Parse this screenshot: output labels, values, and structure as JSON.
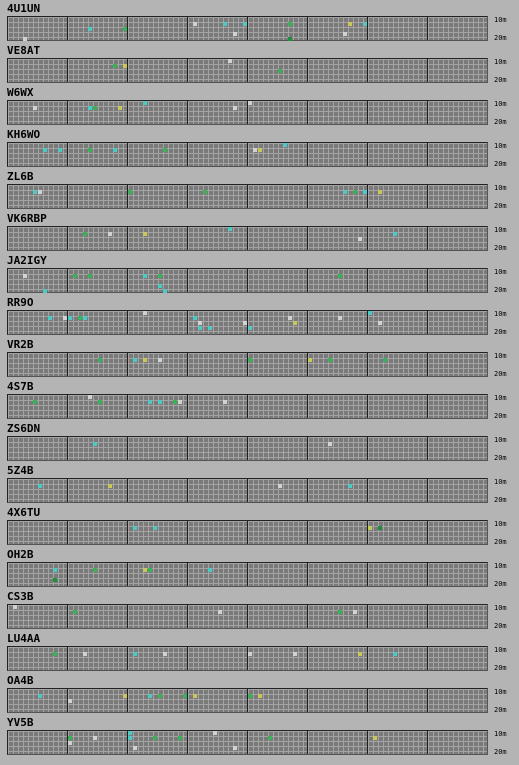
{
  "band_labels": {
    "top": "10m",
    "bottom": "20m"
  },
  "legend_colors": {
    "faint": "#d2d2d2",
    "weak": "#4ecac4",
    "medium": "#3bb25a",
    "strong": "#c8c85a",
    "dark": "#1f8f3c"
  },
  "beacons": [
    {
      "callsign": "4U1UN",
      "cells": [
        [
          16,
          2,
          "weak"
        ],
        [
          23,
          2,
          "medium"
        ],
        [
          37,
          1,
          "faint"
        ],
        [
          43,
          1,
          "weak"
        ],
        [
          47,
          1,
          "weak"
        ],
        [
          56,
          1,
          "medium"
        ],
        [
          68,
          1,
          "strong"
        ],
        [
          71,
          1,
          "weak"
        ],
        [
          3,
          4,
          "faint"
        ],
        [
          45,
          3,
          "faint"
        ],
        [
          56,
          4,
          "dark"
        ],
        [
          67,
          3,
          "faint"
        ]
      ]
    },
    {
      "callsign": "VE8AT",
      "cells": [
        [
          21,
          1,
          "medium"
        ],
        [
          23,
          1,
          "strong"
        ],
        [
          44,
          0,
          "faint"
        ],
        [
          54,
          2,
          "medium"
        ]
      ]
    },
    {
      "callsign": "W6WX",
      "cells": [
        [
          5,
          1,
          "faint"
        ],
        [
          16,
          1,
          "weak"
        ],
        [
          17,
          1,
          "medium"
        ],
        [
          22,
          1,
          "strong"
        ],
        [
          27,
          0,
          "weak"
        ],
        [
          45,
          1,
          "faint"
        ],
        [
          48,
          0,
          "faint"
        ]
      ]
    },
    {
      "callsign": "KH6WO",
      "cells": [
        [
          7,
          1,
          "weak"
        ],
        [
          10,
          1,
          "weak"
        ],
        [
          16,
          1,
          "medium"
        ],
        [
          21,
          1,
          "weak"
        ],
        [
          31,
          1,
          "medium"
        ],
        [
          49,
          1,
          "faint"
        ],
        [
          55,
          0,
          "weak"
        ],
        [
          50,
          1,
          "strong"
        ]
      ]
    },
    {
      "callsign": "ZL6B",
      "cells": [
        [
          5,
          1,
          "weak"
        ],
        [
          6,
          1,
          "faint"
        ],
        [
          24,
          1,
          "medium"
        ],
        [
          39,
          1,
          "medium"
        ],
        [
          67,
          1,
          "weak"
        ],
        [
          69,
          1,
          "medium"
        ],
        [
          71,
          1,
          "weak"
        ],
        [
          74,
          1,
          "strong"
        ]
      ]
    },
    {
      "callsign": "VK6RBP",
      "cells": [
        [
          15,
          1,
          "medium"
        ],
        [
          20,
          1,
          "faint"
        ],
        [
          27,
          1,
          "strong"
        ],
        [
          44,
          0,
          "weak"
        ],
        [
          70,
          2,
          "faint"
        ],
        [
          77,
          1,
          "weak"
        ]
      ]
    },
    {
      "callsign": "JA2IGY",
      "cells": [
        [
          3,
          1,
          "faint"
        ],
        [
          13,
          1,
          "medium"
        ],
        [
          16,
          1,
          "medium"
        ],
        [
          27,
          1,
          "weak"
        ],
        [
          30,
          1,
          "medium"
        ],
        [
          66,
          1,
          "medium"
        ],
        [
          7,
          4,
          "weak"
        ],
        [
          30,
          3,
          "weak"
        ],
        [
          31,
          4,
          "weak"
        ]
      ]
    },
    {
      "callsign": "RR9O",
      "cells": [
        [
          8,
          1,
          "weak"
        ],
        [
          11,
          1,
          "faint"
        ],
        [
          14,
          1,
          "medium"
        ],
        [
          15,
          1,
          "weak"
        ],
        [
          12,
          1,
          "weak"
        ],
        [
          27,
          0,
          "faint"
        ],
        [
          37,
          1,
          "weak"
        ],
        [
          38,
          3,
          "weak"
        ],
        [
          40,
          3,
          "weak"
        ],
        [
          47,
          2,
          "faint"
        ],
        [
          56,
          1,
          "faint"
        ],
        [
          66,
          1,
          "faint"
        ],
        [
          72,
          0,
          "weak"
        ],
        [
          74,
          2,
          "faint"
        ],
        [
          48,
          3,
          "weak"
        ],
        [
          38,
          2,
          "faint"
        ],
        [
          57,
          2,
          "strong"
        ]
      ]
    },
    {
      "callsign": "VR2B",
      "cells": [
        [
          18,
          1,
          "medium"
        ],
        [
          25,
          1,
          "weak"
        ],
        [
          27,
          1,
          "strong"
        ],
        [
          30,
          1,
          "faint"
        ],
        [
          48,
          1,
          "medium"
        ],
        [
          64,
          1,
          "medium"
        ],
        [
          60,
          1,
          "strong"
        ],
        [
          75,
          1,
          "medium"
        ]
      ]
    },
    {
      "callsign": "4S7B",
      "cells": [
        [
          5,
          1,
          "medium"
        ],
        [
          16,
          0,
          "faint"
        ],
        [
          18,
          1,
          "medium"
        ],
        [
          28,
          1,
          "weak"
        ],
        [
          30,
          1,
          "weak"
        ],
        [
          33,
          1,
          "medium"
        ],
        [
          34,
          1,
          "faint"
        ],
        [
          43,
          1,
          "faint"
        ]
      ]
    },
    {
      "callsign": "ZS6DN",
      "cells": [
        [
          17,
          1,
          "weak"
        ],
        [
          64,
          1,
          "faint"
        ]
      ]
    },
    {
      "callsign": "5Z4B",
      "cells": [
        [
          6,
          1,
          "weak"
        ],
        [
          20,
          1,
          "strong"
        ],
        [
          54,
          1,
          "faint"
        ],
        [
          68,
          1,
          "weak"
        ]
      ]
    },
    {
      "callsign": "4X6TU",
      "cells": [
        [
          25,
          1,
          "weak"
        ],
        [
          29,
          1,
          "weak"
        ],
        [
          72,
          1,
          "strong"
        ],
        [
          74,
          1,
          "dark"
        ]
      ]
    },
    {
      "callsign": "OH2B",
      "cells": [
        [
          9,
          1,
          "weak"
        ],
        [
          9,
          3,
          "dark"
        ],
        [
          17,
          1,
          "medium"
        ],
        [
          27,
          1,
          "strong"
        ],
        [
          28,
          1,
          "medium"
        ],
        [
          40,
          1,
          "weak"
        ]
      ]
    },
    {
      "callsign": "CS3B",
      "cells": [
        [
          1,
          0,
          "faint"
        ],
        [
          13,
          1,
          "medium"
        ],
        [
          42,
          1,
          "faint"
        ],
        [
          66,
          1,
          "medium"
        ],
        [
          69,
          1,
          "faint"
        ]
      ]
    },
    {
      "callsign": "LU4AA",
      "cells": [
        [
          9,
          1,
          "medium"
        ],
        [
          15,
          1,
          "faint"
        ],
        [
          25,
          1,
          "weak"
        ],
        [
          31,
          1,
          "faint"
        ],
        [
          48,
          1,
          "faint"
        ],
        [
          57,
          1,
          "faint"
        ],
        [
          70,
          1,
          "strong"
        ],
        [
          77,
          1,
          "weak"
        ]
      ]
    },
    {
      "callsign": "OA4B",
      "cells": [
        [
          6,
          1,
          "weak"
        ],
        [
          12,
          2,
          "faint"
        ],
        [
          23,
          1,
          "strong"
        ],
        [
          28,
          1,
          "weak"
        ],
        [
          30,
          1,
          "medium"
        ],
        [
          35,
          1,
          "medium"
        ],
        [
          37,
          1,
          "strong"
        ],
        [
          48,
          1,
          "medium"
        ],
        [
          50,
          1,
          "strong"
        ]
      ]
    },
    {
      "callsign": "YV5B",
      "cells": [
        [
          12,
          1,
          "medium"
        ],
        [
          12,
          2,
          "faint"
        ],
        [
          17,
          1,
          "faint"
        ],
        [
          24,
          0,
          "weak"
        ],
        [
          24,
          1,
          "weak"
        ],
        [
          25,
          3,
          "faint"
        ],
        [
          29,
          1,
          "medium"
        ],
        [
          34,
          1,
          "medium"
        ],
        [
          41,
          0,
          "faint"
        ],
        [
          45,
          3,
          "faint"
        ],
        [
          52,
          1,
          "medium"
        ],
        [
          73,
          1,
          "strong"
        ]
      ]
    }
  ]
}
